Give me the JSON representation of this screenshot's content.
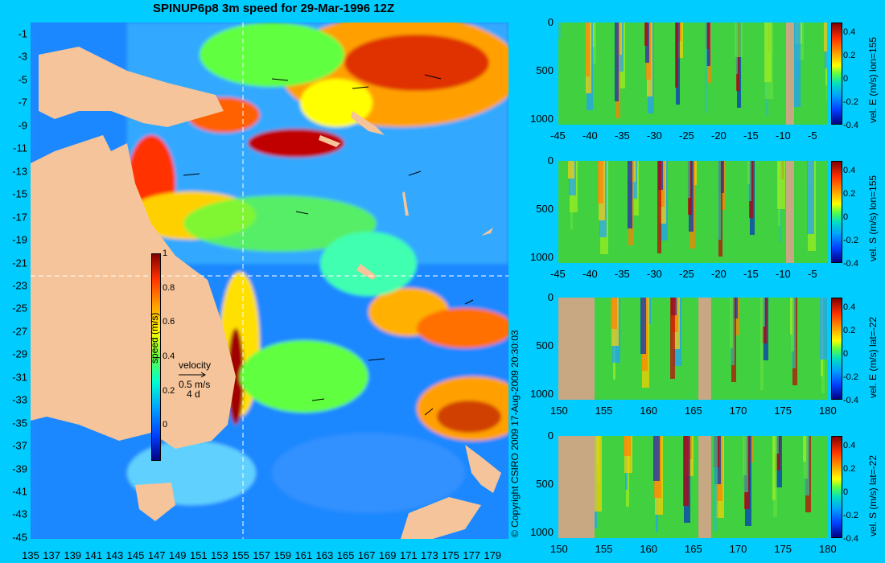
{
  "title": "SPINUP6p8 3m speed for 29-Mar-1996 12Z",
  "copyright": "© Copyright CSIRO 2009  17-Aug-2009 20:30:03",
  "map": {
    "lat_ticks": [
      "-1",
      "-3",
      "-5",
      "-7",
      "-9",
      "-11",
      "-13",
      "-15",
      "-17",
      "-19",
      "-21",
      "-23",
      "-25",
      "-27",
      "-29",
      "-31",
      "-33",
      "-35",
      "-37",
      "-39",
      "-41",
      "-43",
      "-45"
    ],
    "lon_ticks": [
      "135",
      "137",
      "139",
      "141",
      "143",
      "145",
      "147",
      "149",
      "151",
      "153",
      "155",
      "157",
      "159",
      "161",
      "163",
      "165",
      "167",
      "169",
      "171",
      "173",
      "175",
      "177",
      "179"
    ],
    "colorbar": {
      "title": "speed (m/s)",
      "ticks": [
        "1",
        "0.8",
        "0.6",
        "0.4",
        "0.2",
        "0"
      ],
      "range": [
        -0.2,
        1
      ]
    },
    "velocity_key": {
      "title": "velocity",
      "speed": "0.5 m/s",
      "time": "4 d"
    },
    "section_lon": 155,
    "section_lat": -22
  },
  "panels": [
    {
      "label": "vel. E (m/s) lon=155",
      "x_ticks": [
        "-45",
        "-40",
        "-35",
        "-30",
        "-25",
        "-20",
        "-15",
        "-10",
        "-5"
      ],
      "y_ticks": [
        "0",
        "500",
        "1000"
      ],
      "cbar_ticks": [
        "0.4",
        "0.2",
        "0",
        "-0.2",
        "-0.4"
      ]
    },
    {
      "label": "vel. S (m/s) lon=155",
      "x_ticks": [
        "-45",
        "-40",
        "-35",
        "-30",
        "-25",
        "-20",
        "-15",
        "-10",
        "-5"
      ],
      "y_ticks": [
        "0",
        "500",
        "1000"
      ],
      "cbar_ticks": [
        "0.4",
        "0.2",
        "0",
        "-0.2",
        "-0.4"
      ]
    },
    {
      "label": "vel. E (m/s) lat=-22",
      "x_ticks": [
        "150",
        "155",
        "160",
        "165",
        "170",
        "175",
        "180"
      ],
      "y_ticks": [
        "0",
        "500",
        "1000"
      ],
      "cbar_ticks": [
        "0.4",
        "0.2",
        "0",
        "-0.2",
        "-0.4"
      ]
    },
    {
      "label": "vel. S (m/s) lat=-22",
      "x_ticks": [
        "150",
        "155",
        "160",
        "165",
        "170",
        "175",
        "180"
      ],
      "y_ticks": [
        "0",
        "500",
        "1000"
      ],
      "cbar_ticks": [
        "0.4",
        "0.2",
        "0",
        "-0.2",
        "-0.4"
      ]
    }
  ],
  "colors": {
    "background": "#00ccff",
    "land": "#f5c49a",
    "section_land": "#c8a883"
  }
}
